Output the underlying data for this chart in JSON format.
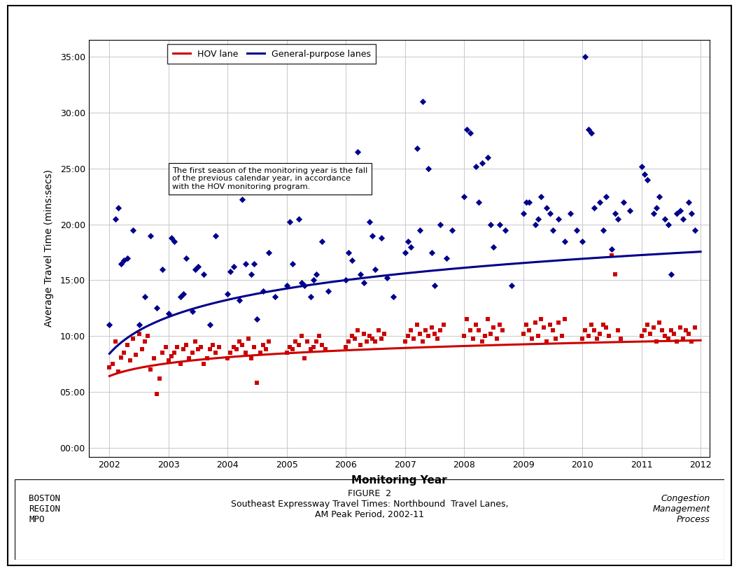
{
  "xlabel": "Monitoring Year",
  "ylabel": "Average Travel Time (mins:secs)",
  "note": "The first season of the monitoring year is the fall\nof the previous calendar year, in accordance\nwith the HOV monitoring program.",
  "footer_left": "BOSTON\nREGION\nMPO",
  "footer_center": "FIGURE  2\nSoutheast Expressway Travel Times: Northbound  Travel Lanes,\nAM Peak Period, 2002-11",
  "footer_right": "Congestion\nManagement\nProcess",
  "hov_color": "#cc0000",
  "gp_color": "#00008B",
  "hov_scatter": [
    [
      2002.0,
      7.2
    ],
    [
      2002.05,
      7.5
    ],
    [
      2002.1,
      9.5
    ],
    [
      2002.15,
      6.8
    ],
    [
      2002.2,
      8.1
    ],
    [
      2002.25,
      8.5
    ],
    [
      2002.3,
      9.2
    ],
    [
      2002.35,
      7.8
    ],
    [
      2002.4,
      9.8
    ],
    [
      2002.45,
      8.3
    ],
    [
      2002.5,
      10.2
    ],
    [
      2002.55,
      8.8
    ],
    [
      2002.6,
      9.5
    ],
    [
      2002.65,
      10.0
    ],
    [
      2002.7,
      7.0
    ],
    [
      2002.75,
      8.0
    ],
    [
      2002.8,
      4.8
    ],
    [
      2002.85,
      6.2
    ],
    [
      2002.9,
      8.5
    ],
    [
      2002.95,
      9.0
    ],
    [
      2003.0,
      7.8
    ],
    [
      2003.05,
      8.2
    ],
    [
      2003.1,
      8.5
    ],
    [
      2003.15,
      9.0
    ],
    [
      2003.2,
      7.5
    ],
    [
      2003.25,
      8.8
    ],
    [
      2003.3,
      9.2
    ],
    [
      2003.35,
      8.0
    ],
    [
      2003.4,
      8.5
    ],
    [
      2003.45,
      9.5
    ],
    [
      2003.5,
      8.8
    ],
    [
      2003.55,
      9.0
    ],
    [
      2003.6,
      7.5
    ],
    [
      2003.65,
      8.0
    ],
    [
      2003.7,
      8.8
    ],
    [
      2003.75,
      9.2
    ],
    [
      2003.8,
      8.5
    ],
    [
      2003.85,
      9.0
    ],
    [
      2004.0,
      8.0
    ],
    [
      2004.05,
      8.5
    ],
    [
      2004.1,
      9.0
    ],
    [
      2004.15,
      8.8
    ],
    [
      2004.2,
      9.5
    ],
    [
      2004.25,
      9.2
    ],
    [
      2004.3,
      8.5
    ],
    [
      2004.35,
      9.8
    ],
    [
      2004.4,
      8.0
    ],
    [
      2004.45,
      9.0
    ],
    [
      2004.5,
      5.8
    ],
    [
      2004.55,
      8.5
    ],
    [
      2004.6,
      9.2
    ],
    [
      2004.65,
      8.8
    ],
    [
      2004.7,
      9.5
    ],
    [
      2005.0,
      8.5
    ],
    [
      2005.05,
      9.0
    ],
    [
      2005.1,
      8.8
    ],
    [
      2005.15,
      9.5
    ],
    [
      2005.2,
      9.2
    ],
    [
      2005.25,
      10.0
    ],
    [
      2005.3,
      8.0
    ],
    [
      2005.35,
      9.5
    ],
    [
      2005.4,
      8.8
    ],
    [
      2005.45,
      9.0
    ],
    [
      2005.5,
      9.5
    ],
    [
      2005.55,
      10.0
    ],
    [
      2005.6,
      9.2
    ],
    [
      2005.65,
      8.8
    ],
    [
      2006.0,
      9.0
    ],
    [
      2006.05,
      9.5
    ],
    [
      2006.1,
      10.0
    ],
    [
      2006.15,
      9.8
    ],
    [
      2006.2,
      10.5
    ],
    [
      2006.25,
      9.2
    ],
    [
      2006.3,
      10.2
    ],
    [
      2006.35,
      9.5
    ],
    [
      2006.4,
      10.0
    ],
    [
      2006.45,
      9.8
    ],
    [
      2006.5,
      9.5
    ],
    [
      2006.55,
      10.5
    ],
    [
      2006.6,
      9.8
    ],
    [
      2006.65,
      10.2
    ],
    [
      2007.0,
      9.5
    ],
    [
      2007.05,
      10.0
    ],
    [
      2007.1,
      10.5
    ],
    [
      2007.15,
      9.8
    ],
    [
      2007.2,
      11.0
    ],
    [
      2007.25,
      10.2
    ],
    [
      2007.3,
      9.5
    ],
    [
      2007.35,
      10.5
    ],
    [
      2007.4,
      10.0
    ],
    [
      2007.45,
      10.8
    ],
    [
      2007.5,
      10.2
    ],
    [
      2007.55,
      9.8
    ],
    [
      2007.6,
      10.5
    ],
    [
      2007.65,
      11.0
    ],
    [
      2008.0,
      10.0
    ],
    [
      2008.05,
      11.5
    ],
    [
      2008.1,
      10.5
    ],
    [
      2008.15,
      9.8
    ],
    [
      2008.2,
      11.0
    ],
    [
      2008.25,
      10.5
    ],
    [
      2008.3,
      9.5
    ],
    [
      2008.35,
      10.0
    ],
    [
      2008.4,
      11.5
    ],
    [
      2008.45,
      10.2
    ],
    [
      2008.5,
      10.8
    ],
    [
      2008.55,
      9.8
    ],
    [
      2008.6,
      11.0
    ],
    [
      2008.65,
      10.5
    ],
    [
      2009.0,
      10.2
    ],
    [
      2009.05,
      11.0
    ],
    [
      2009.1,
      10.5
    ],
    [
      2009.15,
      9.8
    ],
    [
      2009.2,
      11.2
    ],
    [
      2009.25,
      10.0
    ],
    [
      2009.3,
      11.5
    ],
    [
      2009.35,
      10.8
    ],
    [
      2009.4,
      9.5
    ],
    [
      2009.45,
      11.0
    ],
    [
      2009.5,
      10.5
    ],
    [
      2009.55,
      9.8
    ],
    [
      2009.6,
      11.2
    ],
    [
      2009.65,
      10.0
    ],
    [
      2009.7,
      11.5
    ],
    [
      2010.0,
      9.8
    ],
    [
      2010.05,
      10.5
    ],
    [
      2010.1,
      10.0
    ],
    [
      2010.15,
      11.0
    ],
    [
      2010.2,
      10.5
    ],
    [
      2010.25,
      9.8
    ],
    [
      2010.3,
      10.2
    ],
    [
      2010.35,
      11.0
    ],
    [
      2010.4,
      10.8
    ],
    [
      2010.45,
      10.0
    ],
    [
      2010.5,
      17.2
    ],
    [
      2010.55,
      15.5
    ],
    [
      2010.6,
      10.5
    ],
    [
      2010.65,
      9.8
    ],
    [
      2011.0,
      10.0
    ],
    [
      2011.05,
      10.5
    ],
    [
      2011.1,
      11.0
    ],
    [
      2011.15,
      10.2
    ],
    [
      2011.2,
      10.8
    ],
    [
      2011.25,
      9.5
    ],
    [
      2011.3,
      11.2
    ],
    [
      2011.35,
      10.5
    ],
    [
      2011.4,
      10.0
    ],
    [
      2011.45,
      9.8
    ],
    [
      2011.5,
      10.5
    ],
    [
      2011.55,
      10.2
    ],
    [
      2011.6,
      9.5
    ],
    [
      2011.65,
      10.8
    ],
    [
      2011.7,
      9.8
    ],
    [
      2011.75,
      10.5
    ],
    [
      2011.8,
      10.2
    ],
    [
      2011.85,
      9.5
    ],
    [
      2011.9,
      10.8
    ]
  ],
  "gp_scatter": [
    [
      2002.0,
      11.0
    ],
    [
      2002.1,
      20.5
    ],
    [
      2002.2,
      16.5
    ],
    [
      2002.3,
      17.0
    ],
    [
      2002.4,
      19.5
    ],
    [
      2002.5,
      11.0
    ],
    [
      2002.6,
      13.5
    ],
    [
      2002.7,
      19.0
    ],
    [
      2002.8,
      12.5
    ],
    [
      2002.9,
      16.0
    ],
    [
      2002.15,
      21.5
    ],
    [
      2002.25,
      16.8
    ],
    [
      2003.0,
      12.0
    ],
    [
      2003.1,
      18.5
    ],
    [
      2003.2,
      13.5
    ],
    [
      2003.3,
      17.0
    ],
    [
      2003.4,
      12.2
    ],
    [
      2003.5,
      16.2
    ],
    [
      2003.6,
      15.5
    ],
    [
      2003.7,
      11.0
    ],
    [
      2003.8,
      19.0
    ],
    [
      2003.05,
      18.8
    ],
    [
      2003.25,
      13.8
    ],
    [
      2003.45,
      16.0
    ],
    [
      2004.0,
      13.8
    ],
    [
      2004.1,
      16.2
    ],
    [
      2004.2,
      13.2
    ],
    [
      2004.3,
      16.5
    ],
    [
      2004.4,
      15.5
    ],
    [
      2004.5,
      11.5
    ],
    [
      2004.6,
      14.0
    ],
    [
      2004.7,
      17.5
    ],
    [
      2004.8,
      13.5
    ],
    [
      2004.05,
      15.8
    ],
    [
      2004.25,
      22.2
    ],
    [
      2004.45,
      16.5
    ],
    [
      2005.0,
      14.5
    ],
    [
      2005.1,
      16.5
    ],
    [
      2005.2,
      20.5
    ],
    [
      2005.3,
      14.5
    ],
    [
      2005.4,
      13.5
    ],
    [
      2005.5,
      15.5
    ],
    [
      2005.6,
      18.5
    ],
    [
      2005.7,
      14.0
    ],
    [
      2005.05,
      20.2
    ],
    [
      2005.25,
      14.8
    ],
    [
      2005.45,
      15.0
    ],
    [
      2006.0,
      15.0
    ],
    [
      2006.1,
      16.8
    ],
    [
      2006.2,
      26.5
    ],
    [
      2006.3,
      14.8
    ],
    [
      2006.4,
      20.2
    ],
    [
      2006.5,
      16.0
    ],
    [
      2006.6,
      18.8
    ],
    [
      2006.7,
      15.2
    ],
    [
      2006.8,
      13.5
    ],
    [
      2006.05,
      17.5
    ],
    [
      2006.25,
      15.5
    ],
    [
      2006.45,
      19.0
    ],
    [
      2007.0,
      17.5
    ],
    [
      2007.1,
      18.0
    ],
    [
      2007.2,
      26.8
    ],
    [
      2007.3,
      31.0
    ],
    [
      2007.4,
      25.0
    ],
    [
      2007.5,
      14.5
    ],
    [
      2007.6,
      20.0
    ],
    [
      2007.7,
      17.0
    ],
    [
      2007.8,
      19.5
    ],
    [
      2007.05,
      18.5
    ],
    [
      2007.25,
      19.5
    ],
    [
      2007.45,
      17.5
    ],
    [
      2008.0,
      22.5
    ],
    [
      2008.1,
      28.2
    ],
    [
      2008.2,
      25.2
    ],
    [
      2008.3,
      25.5
    ],
    [
      2008.4,
      26.0
    ],
    [
      2008.5,
      18.0
    ],
    [
      2008.6,
      20.0
    ],
    [
      2008.7,
      19.5
    ],
    [
      2008.8,
      14.5
    ],
    [
      2008.05,
      28.5
    ],
    [
      2008.25,
      22.0
    ],
    [
      2008.45,
      20.0
    ],
    [
      2009.0,
      21.0
    ],
    [
      2009.1,
      22.0
    ],
    [
      2009.2,
      20.0
    ],
    [
      2009.3,
      22.5
    ],
    [
      2009.4,
      21.5
    ],
    [
      2009.5,
      19.5
    ],
    [
      2009.6,
      20.5
    ],
    [
      2009.7,
      18.5
    ],
    [
      2009.8,
      21.0
    ],
    [
      2009.9,
      19.5
    ],
    [
      2009.05,
      22.0
    ],
    [
      2009.25,
      20.5
    ],
    [
      2009.45,
      21.0
    ],
    [
      2010.0,
      18.5
    ],
    [
      2010.05,
      35.0
    ],
    [
      2010.1,
      28.5
    ],
    [
      2010.2,
      21.5
    ],
    [
      2010.3,
      22.0
    ],
    [
      2010.4,
      22.5
    ],
    [
      2010.5,
      17.8
    ],
    [
      2010.6,
      20.5
    ],
    [
      2010.7,
      22.0
    ],
    [
      2010.8,
      21.2
    ],
    [
      2010.15,
      28.2
    ],
    [
      2010.35,
      19.5
    ],
    [
      2010.55,
      21.0
    ],
    [
      2011.0,
      25.2
    ],
    [
      2011.1,
      24.0
    ],
    [
      2011.2,
      21.0
    ],
    [
      2011.3,
      22.5
    ],
    [
      2011.4,
      20.5
    ],
    [
      2011.5,
      15.5
    ],
    [
      2011.6,
      21.0
    ],
    [
      2011.7,
      20.5
    ],
    [
      2011.8,
      22.0
    ],
    [
      2011.9,
      19.5
    ],
    [
      2011.05,
      24.5
    ],
    [
      2011.25,
      21.5
    ],
    [
      2011.45,
      20.0
    ],
    [
      2011.65,
      21.2
    ],
    [
      2011.85,
      21.0
    ]
  ],
  "yticks_minutes": [
    0,
    5,
    10,
    15,
    20,
    25,
    30,
    35
  ],
  "xticks": [
    2002,
    2003,
    2004,
    2005,
    2006,
    2007,
    2008,
    2009,
    2010,
    2011,
    2012
  ],
  "xlim": [
    2001.65,
    2012.15
  ],
  "ylim_minutes": [
    -0.8,
    36.5
  ],
  "hov_trend_a": 7.15,
  "hov_trend_b": 1.05,
  "gp_trend_a": 10.5,
  "gp_trend_b": 3.0
}
